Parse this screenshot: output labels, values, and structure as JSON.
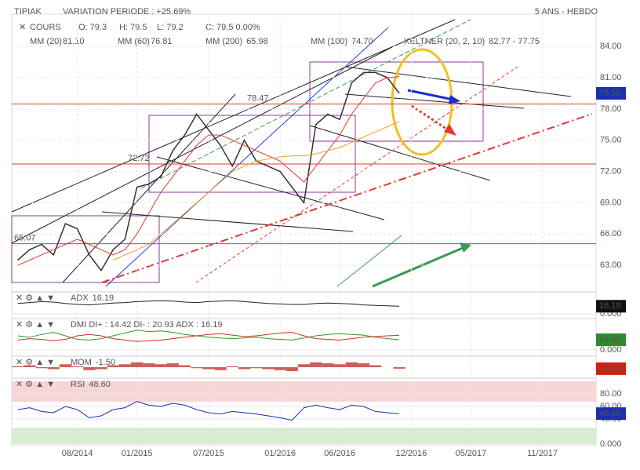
{
  "header": {
    "symbol": "TIPIAK",
    "variation": "VARIATION PERIODE : +25.69%",
    "period": "5 ANS - HEBDO",
    "ohlc": [
      "O: 79.3",
      "H: 79.5",
      "L: 79.2",
      "C: 79.5 0.00%"
    ],
    "legend": [
      {
        "label": "MM (200)",
        "value": "65.98",
        "color": "#3a9a50"
      },
      {
        "label": "MM (100)",
        "value": "74.70",
        "color": "#30b8d0"
      },
      {
        "label": "KELTNER (20, 2, 10)",
        "value": "82.77 - 77.75",
        "color": "#3a9a50"
      }
    ]
  },
  "chart_data": [
    {
      "type": "line",
      "categories": [
        null,
        null,
        null,
        null,
        null,
        "08/2014",
        null,
        null,
        null,
        null,
        "01/2015",
        null,
        null,
        null,
        null,
        null,
        "07/2015",
        null,
        null,
        null,
        null,
        null,
        "01/2016",
        null,
        null,
        null,
        null,
        "06/2016",
        null,
        null,
        null,
        null,
        null,
        "12/2016",
        null,
        null,
        null,
        null,
        "05/2017",
        null,
        null,
        null,
        null,
        null,
        "11/2017",
        null,
        null,
        null,
        null
      ],
      "series": [
        {
          "name": "COURS",
          "color": "#333333",
          "legend_value": "",
          "values": [
            63.5,
            64.5,
            65,
            64,
            67,
            66.5,
            64,
            62.5,
            64.5,
            65.5,
            70.5,
            70.8,
            71.5,
            74,
            75.5,
            77.5,
            76,
            74.5,
            72.5,
            75,
            73,
            72.5,
            72,
            70.5,
            69,
            76.5,
            77.5,
            77,
            80.5,
            81.5,
            81.5,
            81,
            79.5,
            null,
            null,
            null,
            null,
            null,
            null,
            null,
            null,
            null,
            null,
            null,
            null,
            null,
            null,
            null,
            null
          ]
        },
        {
          "name": "MM (20)",
          "color": "#e03a2f",
          "legend_value": "81.10",
          "values": [
            63,
            63.5,
            64,
            64.5,
            65,
            65.5,
            65,
            64.5,
            64,
            64.5,
            66,
            68,
            70,
            71.5,
            73,
            74.5,
            75.5,
            75.5,
            75,
            74.5,
            74,
            73.5,
            73,
            72,
            71,
            72.5,
            74,
            75.5,
            77.5,
            79,
            80.5,
            81,
            81.1,
            null,
            null,
            null,
            null,
            null,
            null,
            null,
            null,
            null,
            null,
            null,
            null,
            null,
            null,
            null,
            null
          ]
        },
        {
          "name": "MM (60)",
          "color": "#f0a020",
          "legend_value": "76.81",
          "values": [
            null,
            null,
            null,
            null,
            null,
            null,
            null,
            null,
            63.5,
            64,
            64.5,
            65,
            66,
            67,
            68,
            69,
            70,
            71,
            72,
            72.5,
            73,
            73.2,
            73.4,
            73.5,
            73.5,
            73.7,
            74,
            74.3,
            74.8,
            75.3,
            75.8,
            76.3,
            76.81,
            null,
            null,
            null,
            null,
            null,
            null,
            null,
            null,
            null,
            null,
            null,
            null,
            null,
            null,
            null,
            null
          ]
        }
      ],
      "ylim": [
        60.75,
        87.1
      ],
      "yticks": [
        {
          "value": 84,
          "label": "84.00"
        },
        {
          "value": 81,
          "label": "81.00"
        },
        {
          "value": 78,
          "label": "78.00"
        },
        {
          "value": 75,
          "label": "75.00"
        },
        {
          "value": 72,
          "label": "72.00"
        },
        {
          "value": 69,
          "label": "69.00"
        },
        {
          "value": 66,
          "label": "66.00"
        },
        {
          "value": 63,
          "label": "63.00"
        }
      ],
      "levels": [
        78.47,
        72.72,
        65.07
      ],
      "last": {
        "value": 79.5,
        "label": "79.50"
      },
      "grid": true
    },
    {
      "type": "line",
      "title": "ADX",
      "title_value": "16.19",
      "box_label": "16.19",
      "box_color": "#111111",
      "ylim": [
        0,
        40
      ],
      "yticks": [
        {
          "value": 0,
          "label": "0.000"
        }
      ],
      "series": [
        {
          "name": "ADX",
          "color": "#222222",
          "values": [
            22,
            24,
            26,
            25,
            22,
            20,
            19,
            21,
            23,
            24,
            26,
            27,
            28,
            27,
            25,
            24,
            26,
            27,
            28,
            26,
            24,
            22,
            21,
            20,
            20,
            22,
            23,
            22,
            21,
            19,
            18,
            17,
            16.19
          ]
        }
      ]
    },
    {
      "type": "line",
      "title": "DMI DI+ : 14.42 DI- : 20.93 ADX : 16.19",
      "box_label": "14.42",
      "box_color": "#2e8b2e",
      "ylim": [
        0,
        40
      ],
      "yticks": [
        {
          "value": 0,
          "label": "0.000"
        }
      ],
      "series": [
        {
          "name": "DI+",
          "color": "#2e9a2e",
          "values": [
            20,
            18,
            22,
            25,
            20,
            15,
            14,
            16,
            20,
            24,
            28,
            26,
            27,
            25,
            22,
            20,
            18,
            17,
            16,
            17,
            18,
            16,
            15,
            14,
            17,
            20,
            22,
            23,
            22,
            21,
            18,
            16,
            14.42
          ]
        },
        {
          "name": "DI-",
          "color": "#d03020",
          "values": [
            14,
            16,
            15,
            13,
            15,
            20,
            22,
            20,
            16,
            14,
            12,
            13,
            14,
            16,
            18,
            20,
            22,
            23,
            21,
            19,
            20,
            22,
            24,
            25,
            20,
            16,
            15,
            14,
            16,
            18,
            19,
            20,
            20.93
          ]
        }
      ]
    },
    {
      "type": "bar",
      "title": "MOM",
      "title_value": "-1.50",
      "box_label": "-1.500",
      "box_color": "#d02010",
      "ylim": [
        -8,
        8
      ],
      "yticks": [],
      "series": [
        {
          "name": "MOM",
          "color": "#c0392b",
          "values": [
            1,
            2,
            -1,
            -2,
            3,
            1,
            -3,
            -2,
            2,
            3,
            5,
            4,
            3,
            4,
            2,
            -1,
            -2,
            -3,
            1,
            -2,
            -1,
            -2,
            -3,
            -4,
            3,
            5,
            4,
            3,
            5,
            4,
            2,
            0,
            -1.5
          ]
        }
      ]
    },
    {
      "type": "line",
      "title": "RSI",
      "title_value": "48.60",
      "box_label": "48.60",
      "box_color": "#1a2fb0",
      "ylim": [
        0,
        100
      ],
      "yticks": [
        {
          "value": 80,
          "label": "80.00"
        },
        {
          "value": 60,
          "label": "60.00"
        },
        {
          "value": 40,
          "label": "40.00"
        },
        {
          "value": 0,
          "label": "0.000"
        }
      ],
      "series": [
        {
          "name": "RSI",
          "color": "#1a2fb0",
          "values": [
            55,
            58,
            52,
            50,
            60,
            55,
            42,
            45,
            55,
            58,
            68,
            62,
            60,
            65,
            62,
            55,
            50,
            48,
            52,
            50,
            48,
            45,
            42,
            38,
            58,
            62,
            58,
            55,
            62,
            60,
            52,
            50,
            48.6
          ]
        }
      ]
    }
  ]
}
